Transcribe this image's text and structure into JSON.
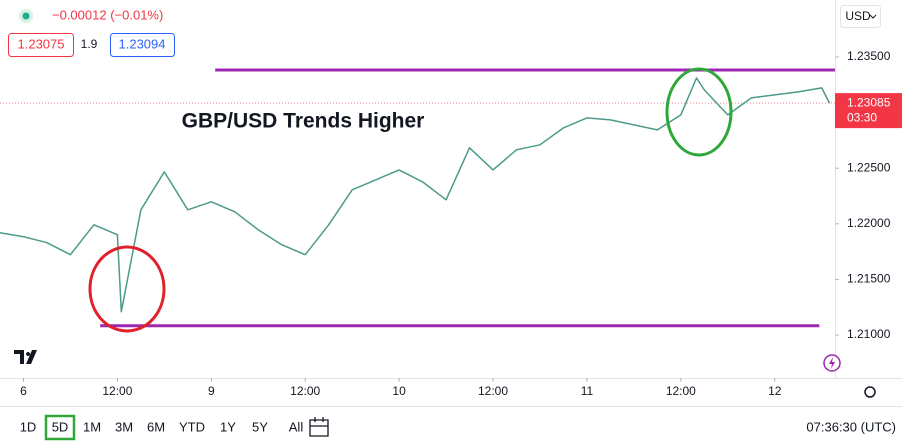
{
  "header": {
    "change": "−0.00012 (−0.01%)",
    "bid": "1.23075",
    "spread": "1.9",
    "ask": "1.23094",
    "currency": "USD"
  },
  "toolbar": {
    "ranges": [
      "1D",
      "5D",
      "1M",
      "3M",
      "6M",
      "YTD",
      "1Y",
      "5Y",
      "All"
    ],
    "active": "5D",
    "clock": "07:36:30 (UTC)"
  },
  "chart_data": {
    "type": "line",
    "title": "GBP/USD Trends Higher",
    "x": [
      -3,
      0,
      3,
      6,
      9,
      12,
      12.5,
      15,
      18,
      21,
      24,
      27,
      30,
      33,
      36,
      39,
      42,
      45,
      48,
      51,
      54,
      57,
      60,
      63,
      66,
      69,
      72,
      75,
      78,
      81,
      84,
      86,
      87,
      90,
      93,
      96,
      99,
      102,
      103
    ],
    "series": [
      {
        "name": "GBP/USD",
        "color": "#4c9a8a",
        "values": [
          1.2192,
          1.21884,
          1.2183,
          1.21722,
          1.21991,
          1.21902,
          1.2121,
          1.22126,
          1.22467,
          1.22126,
          1.22198,
          1.22108,
          1.21946,
          1.21812,
          1.21722,
          1.21991,
          1.22306,
          1.22395,
          1.22485,
          1.22377,
          1.22216,
          1.22683,
          1.22485,
          1.22665,
          1.2271,
          1.22862,
          1.22952,
          1.22934,
          1.22889,
          1.22844,
          1.22979,
          1.23311,
          1.23204,
          1.22979,
          1.23132,
          1.23159,
          1.23186,
          1.23222,
          1.23085
        ]
      }
    ],
    "xlim": [
      -3,
      103.7
    ],
    "ylim": [
      1.20614,
      1.24012
    ],
    "xticks": [
      {
        "value": 0,
        "label": "6"
      },
      {
        "value": 12,
        "label": "12:00"
      },
      {
        "value": 24,
        "label": "9"
      },
      {
        "value": 36,
        "label": "12:00"
      },
      {
        "value": 48,
        "label": "10"
      },
      {
        "value": 60,
        "label": "12:00"
      },
      {
        "value": 72,
        "label": "11"
      },
      {
        "value": 84,
        "label": "12:00"
      },
      {
        "value": 96,
        "label": "12"
      }
    ],
    "yticks": [
      {
        "value": 1.235,
        "label": "1.23500"
      },
      {
        "value": 1.225,
        "label": "1.22500"
      },
      {
        "value": 1.22,
        "label": "1.22000"
      },
      {
        "value": 1.215,
        "label": "1.21500"
      },
      {
        "value": 1.21,
        "label": "1.21000"
      }
    ],
    "last_price": {
      "value": 1.23085,
      "label": "1.23085"
    },
    "countdown": "03:30",
    "levels": [
      {
        "value": 1.23383,
        "x": [
          24.5,
          103.7
        ],
        "color": "#9c27b0"
      },
      {
        "value": 1.21084,
        "x": [
          9.8,
          101.7
        ],
        "color": "#9c27b0"
      }
    ]
  }
}
